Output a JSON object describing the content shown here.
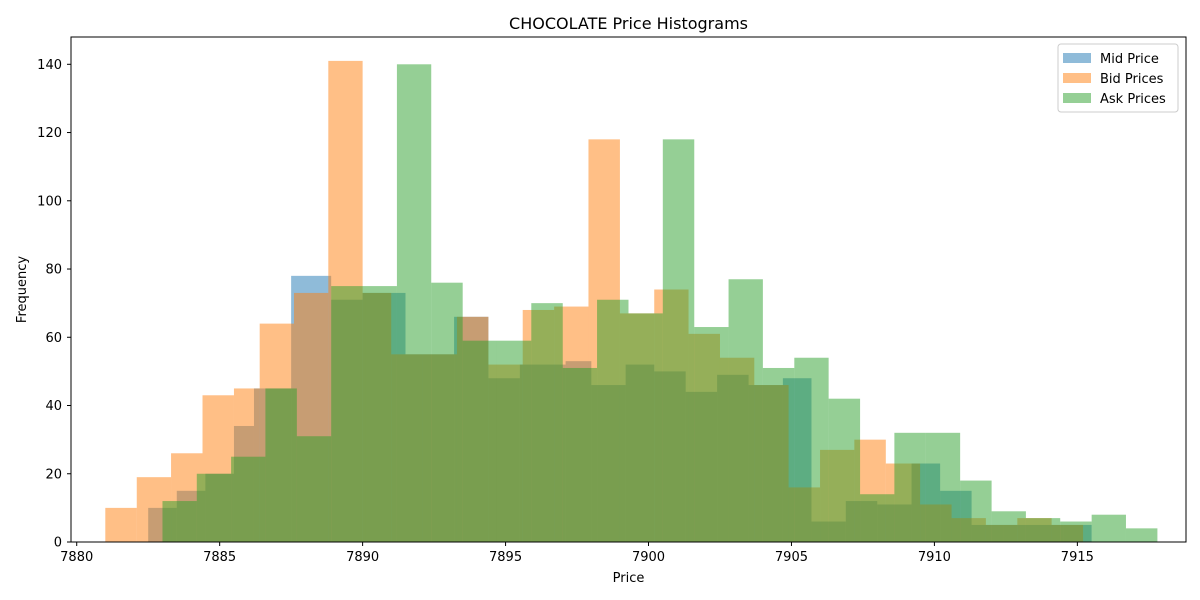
{
  "chart_data": {
    "type": "histogram",
    "title": "CHOCOLATE Price Histograms",
    "xlabel": "Price",
    "ylabel": "Frequency",
    "xlim": [
      7879.8,
      7918.8
    ],
    "ylim": [
      0,
      148
    ],
    "xticks": [
      7880,
      7885,
      7890,
      7895,
      7900,
      7905,
      7910,
      7915
    ],
    "yticks": [
      0,
      20,
      40,
      60,
      80,
      100,
      120,
      140
    ],
    "grid": false,
    "legend_position": "top-right",
    "series": [
      {
        "name": "Mid Price",
        "color": "#1f77b4",
        "opacity": 0.5,
        "bins": [
          [
            7882.5,
            7883.5,
            10
          ],
          [
            7883.5,
            7884.5,
            15
          ],
          [
            7884.5,
            7885.5,
            20
          ],
          [
            7885.5,
            7886.2,
            34
          ],
          [
            7886.2,
            7887.5,
            45
          ],
          [
            7887.5,
            7888.9,
            78
          ],
          [
            7888.9,
            7890.0,
            71
          ],
          [
            7890.0,
            7891.5,
            73
          ],
          [
            7891.5,
            7893.2,
            55
          ],
          [
            7893.2,
            7894.4,
            66
          ],
          [
            7894.4,
            7895.5,
            48
          ],
          [
            7895.5,
            7897.1,
            52
          ],
          [
            7897.1,
            7898.0,
            53
          ],
          [
            7898.0,
            7899.2,
            46
          ],
          [
            7899.2,
            7900.2,
            52
          ],
          [
            7900.2,
            7901.3,
            50
          ],
          [
            7901.3,
            7902.4,
            44
          ],
          [
            7902.4,
            7903.5,
            49
          ],
          [
            7903.5,
            7904.7,
            46
          ],
          [
            7904.7,
            7905.7,
            48
          ],
          [
            7905.7,
            7906.9,
            6
          ],
          [
            7906.9,
            7908.0,
            12
          ],
          [
            7908.0,
            7909.2,
            11
          ],
          [
            7909.2,
            7910.2,
            23
          ],
          [
            7910.2,
            7911.3,
            15
          ],
          [
            7911.3,
            7912.4,
            5
          ],
          [
            7912.4,
            7913.5,
            5
          ],
          [
            7913.5,
            7914.5,
            5
          ],
          [
            7914.5,
            7915.5,
            5
          ]
        ]
      },
      {
        "name": "Bid Prices",
        "color": "#ff7f0e",
        "opacity": 0.5,
        "bins": [
          [
            7881.0,
            7882.1,
            10
          ],
          [
            7882.1,
            7883.3,
            19
          ],
          [
            7883.3,
            7884.4,
            26
          ],
          [
            7884.4,
            7885.5,
            43
          ],
          [
            7885.5,
            7886.4,
            45
          ],
          [
            7886.4,
            7887.6,
            64
          ],
          [
            7887.6,
            7888.8,
            73
          ],
          [
            7888.8,
            7890.0,
            141
          ],
          [
            7890.0,
            7891.0,
            73
          ],
          [
            7891.0,
            7892.1,
            55
          ],
          [
            7892.1,
            7893.3,
            55
          ],
          [
            7893.3,
            7894.4,
            66
          ],
          [
            7894.4,
            7895.6,
            52
          ],
          [
            7895.6,
            7896.7,
            68
          ],
          [
            7896.7,
            7897.9,
            69
          ],
          [
            7897.9,
            7899.0,
            118
          ],
          [
            7899.0,
            7900.2,
            67
          ],
          [
            7900.2,
            7901.4,
            74
          ],
          [
            7901.4,
            7902.5,
            61
          ],
          [
            7902.5,
            7903.7,
            54
          ],
          [
            7903.7,
            7904.9,
            46
          ],
          [
            7904.9,
            7906.0,
            16
          ],
          [
            7906.0,
            7907.2,
            27
          ],
          [
            7907.2,
            7908.3,
            30
          ],
          [
            7908.3,
            7909.5,
            23
          ],
          [
            7909.5,
            7910.6,
            11
          ],
          [
            7910.6,
            7911.8,
            7
          ],
          [
            7911.8,
            7912.9,
            5
          ],
          [
            7912.9,
            7914.1,
            7
          ],
          [
            7914.1,
            7915.2,
            5
          ]
        ]
      },
      {
        "name": "Ask Prices",
        "color": "#2ca02c",
        "opacity": 0.5,
        "bins": [
          [
            7883.0,
            7884.2,
            12
          ],
          [
            7884.2,
            7885.4,
            20
          ],
          [
            7885.4,
            7886.6,
            25
          ],
          [
            7886.6,
            7887.7,
            45
          ],
          [
            7887.7,
            7888.9,
            31
          ],
          [
            7888.9,
            7890.1,
            75
          ],
          [
            7890.1,
            7891.2,
            75
          ],
          [
            7891.2,
            7892.4,
            140
          ],
          [
            7892.4,
            7893.5,
            76
          ],
          [
            7893.5,
            7894.7,
            59
          ],
          [
            7894.7,
            7895.9,
            59
          ],
          [
            7895.9,
            7897.0,
            70
          ],
          [
            7897.0,
            7898.2,
            51
          ],
          [
            7898.2,
            7899.3,
            71
          ],
          [
            7899.3,
            7900.5,
            67
          ],
          [
            7900.5,
            7901.6,
            118
          ],
          [
            7901.6,
            7902.8,
            63
          ],
          [
            7902.8,
            7904.0,
            77
          ],
          [
            7904.0,
            7905.1,
            51
          ],
          [
            7905.1,
            7906.3,
            54
          ],
          [
            7906.3,
            7907.4,
            42
          ],
          [
            7907.4,
            7908.6,
            14
          ],
          [
            7908.6,
            7909.7,
            32
          ],
          [
            7909.7,
            7910.9,
            32
          ],
          [
            7910.9,
            7912.0,
            18
          ],
          [
            7912.0,
            7913.2,
            9
          ],
          [
            7913.2,
            7914.4,
            7
          ],
          [
            7914.4,
            7915.5,
            6
          ],
          [
            7915.5,
            7916.7,
            8
          ],
          [
            7916.7,
            7917.8,
            4
          ]
        ]
      }
    ]
  }
}
